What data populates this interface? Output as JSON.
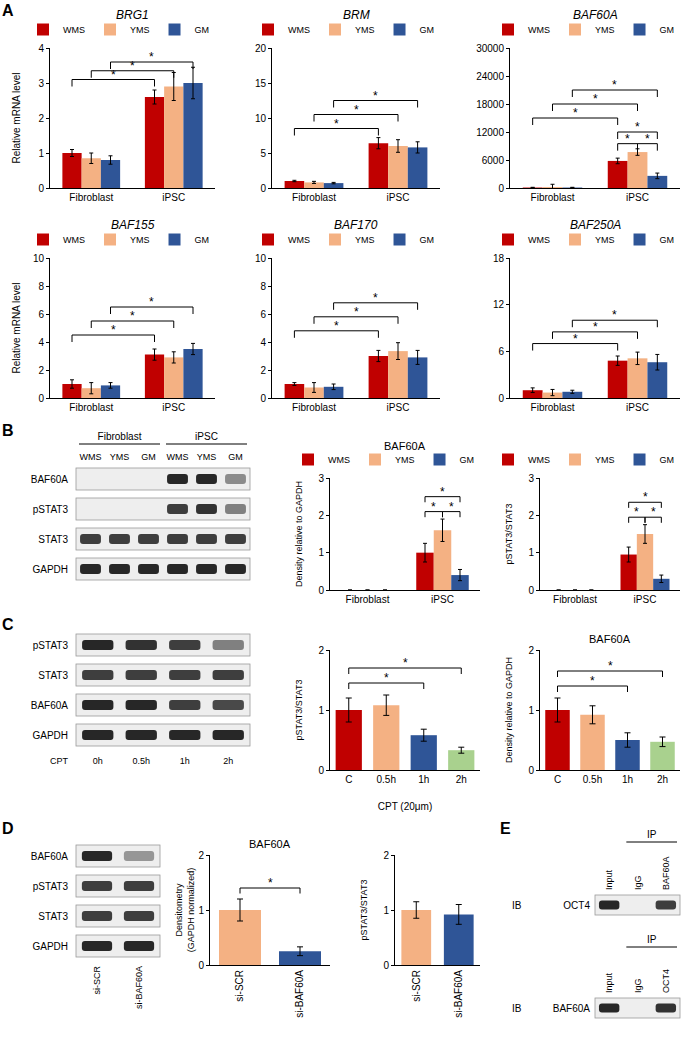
{
  "chart_data": [
    {
      "type": "bar",
      "title": "BRG1",
      "y_label": "Relative mRNA level",
      "categories": [
        "Fibroblast",
        "iPSC"
      ],
      "series": [
        {
          "name": "WMS",
          "color": "#c00000",
          "values": [
            1.0,
            2.6
          ],
          "errors": [
            0.1,
            0.2
          ]
        },
        {
          "name": "YMS",
          "color": "#f4b183",
          "values": [
            0.85,
            2.9
          ],
          "errors": [
            0.15,
            0.4
          ]
        },
        {
          "name": "GM",
          "color": "#2f5597",
          "values": [
            0.8,
            3.0
          ],
          "errors": [
            0.12,
            0.45
          ]
        }
      ],
      "ylim": [
        0,
        4
      ],
      "yticks": [
        0,
        1,
        2,
        3,
        4
      ],
      "legend": "top",
      "significance": [
        {
          "from": [
            "Fibroblast",
            "WMS"
          ],
          "to": [
            "iPSC",
            "WMS"
          ],
          "y": 3.1,
          "label": "*"
        },
        {
          "from": [
            "Fibroblast",
            "YMS"
          ],
          "to": [
            "iPSC",
            "YMS"
          ],
          "y": 3.35,
          "label": "*"
        },
        {
          "from": [
            "Fibroblast",
            "GM"
          ],
          "to": [
            "iPSC",
            "GM"
          ],
          "y": 3.6,
          "label": "*"
        }
      ]
    },
    {
      "type": "bar",
      "title": "BRM",
      "categories": [
        "Fibroblast",
        "iPSC"
      ],
      "series": [
        {
          "name": "WMS",
          "color": "#c00000",
          "values": [
            1.0,
            6.4
          ],
          "errors": [
            0.1,
            0.8
          ]
        },
        {
          "name": "YMS",
          "color": "#f4b183",
          "values": [
            0.8,
            6.0
          ],
          "errors": [
            0.15,
            0.9
          ]
        },
        {
          "name": "GM",
          "color": "#2f5597",
          "values": [
            0.7,
            5.8
          ],
          "errors": [
            0.1,
            0.8
          ]
        }
      ],
      "ylim": [
        0,
        20
      ],
      "yticks": [
        0,
        5,
        10,
        15,
        20
      ],
      "legend": "top",
      "significance": [
        {
          "from": [
            "Fibroblast",
            "WMS"
          ],
          "to": [
            "iPSC",
            "WMS"
          ],
          "y": 8.5,
          "label": "*"
        },
        {
          "from": [
            "Fibroblast",
            "YMS"
          ],
          "to": [
            "iPSC",
            "YMS"
          ],
          "y": 10.5,
          "label": "*"
        },
        {
          "from": [
            "Fibroblast",
            "GM"
          ],
          "to": [
            "iPSC",
            "GM"
          ],
          "y": 12.5,
          "label": "*"
        }
      ]
    },
    {
      "type": "bar",
      "title": "BAF60A",
      "categories": [
        "Fibroblast",
        "iPSC"
      ],
      "series": [
        {
          "name": "WMS",
          "color": "#c00000",
          "values": [
            100,
            5800
          ],
          "errors": [
            50,
            600
          ]
        },
        {
          "name": "YMS",
          "color": "#f4b183",
          "values": [
            200,
            7700
          ],
          "errors": [
            600,
            700
          ]
        },
        {
          "name": "GM",
          "color": "#2f5597",
          "values": [
            100,
            2600
          ],
          "errors": [
            50,
            600
          ]
        }
      ],
      "ylim": [
        0,
        30000
      ],
      "yticks": [
        0,
        6000,
        12000,
        18000,
        24000,
        30000
      ],
      "legend": "top",
      "significance": [
        {
          "from": [
            "Fibroblast",
            "WMS"
          ],
          "to": [
            "iPSC",
            "WMS"
          ],
          "y": 15000,
          "label": "*"
        },
        {
          "from": [
            "Fibroblast",
            "YMS"
          ],
          "to": [
            "iPSC",
            "YMS"
          ],
          "y": 18000,
          "label": "*"
        },
        {
          "from": [
            "Fibroblast",
            "GM"
          ],
          "to": [
            "iPSC",
            "GM"
          ],
          "y": 21000,
          "label": "*"
        },
        {
          "from": [
            "iPSC",
            "WMS"
          ],
          "to": [
            "iPSC",
            "YMS"
          ],
          "y": 9500,
          "label": "*"
        },
        {
          "from": [
            "iPSC",
            "YMS"
          ],
          "to": [
            "iPSC",
            "GM"
          ],
          "y": 9500,
          "label": "*"
        },
        {
          "from": [
            "iPSC",
            "WMS"
          ],
          "to": [
            "iPSC",
            "GM"
          ],
          "y": 12000,
          "label": "*"
        }
      ]
    },
    {
      "type": "bar",
      "title": "BAF155",
      "y_label": "Relative mRNA level",
      "categories": [
        "Fibroblast",
        "iPSC"
      ],
      "series": [
        {
          "name": "WMS",
          "color": "#c00000",
          "values": [
            1.0,
            3.1
          ],
          "errors": [
            0.3,
            0.4
          ]
        },
        {
          "name": "YMS",
          "color": "#f4b183",
          "values": [
            0.7,
            2.9
          ],
          "errors": [
            0.4,
            0.4
          ]
        },
        {
          "name": "GM",
          "color": "#2f5597",
          "values": [
            0.9,
            3.5
          ],
          "errors": [
            0.2,
            0.4
          ]
        }
      ],
      "ylim": [
        0,
        10
      ],
      "yticks": [
        0,
        2,
        4,
        6,
        8,
        10
      ],
      "legend": "top",
      "significance": [
        {
          "from": [
            "Fibroblast",
            "WMS"
          ],
          "to": [
            "iPSC",
            "WMS"
          ],
          "y": 4.5,
          "label": "*"
        },
        {
          "from": [
            "Fibroblast",
            "YMS"
          ],
          "to": [
            "iPSC",
            "YMS"
          ],
          "y": 5.5,
          "label": "*"
        },
        {
          "from": [
            "Fibroblast",
            "GM"
          ],
          "to": [
            "iPSC",
            "GM"
          ],
          "y": 6.5,
          "label": "*"
        }
      ]
    },
    {
      "type": "bar",
      "title": "BAF170",
      "categories": [
        "Fibroblast",
        "iPSC"
      ],
      "series": [
        {
          "name": "WMS",
          "color": "#c00000",
          "values": [
            1.0,
            3.0
          ],
          "errors": [
            0.1,
            0.4
          ]
        },
        {
          "name": "YMS",
          "color": "#f4b183",
          "values": [
            0.75,
            3.35
          ],
          "errors": [
            0.35,
            0.6
          ]
        },
        {
          "name": "GM",
          "color": "#2f5597",
          "values": [
            0.8,
            2.9
          ],
          "errors": [
            0.2,
            0.5
          ]
        }
      ],
      "ylim": [
        0,
        10
      ],
      "yticks": [
        0,
        2,
        4,
        6,
        8,
        10
      ],
      "legend": "top",
      "significance": [
        {
          "from": [
            "Fibroblast",
            "WMS"
          ],
          "to": [
            "iPSC",
            "WMS"
          ],
          "y": 4.8,
          "label": "*"
        },
        {
          "from": [
            "Fibroblast",
            "YMS"
          ],
          "to": [
            "iPSC",
            "YMS"
          ],
          "y": 5.8,
          "label": "*"
        },
        {
          "from": [
            "Fibroblast",
            "GM"
          ],
          "to": [
            "iPSC",
            "GM"
          ],
          "y": 6.8,
          "label": "*"
        }
      ]
    },
    {
      "type": "bar",
      "title": "BAF250A",
      "categories": [
        "Fibroblast",
        "iPSC"
      ],
      "series": [
        {
          "name": "WMS",
          "color": "#c00000",
          "values": [
            1.0,
            4.8
          ],
          "errors": [
            0.3,
            0.6
          ]
        },
        {
          "name": "YMS",
          "color": "#f4b183",
          "values": [
            0.7,
            5.1
          ],
          "errors": [
            0.4,
            0.8
          ]
        },
        {
          "name": "GM",
          "color": "#2f5597",
          "values": [
            0.8,
            4.6
          ],
          "errors": [
            0.2,
            1.0
          ]
        }
      ],
      "ylim": [
        0,
        18
      ],
      "yticks": [
        0,
        6,
        12,
        18
      ],
      "legend": "top",
      "significance": [
        {
          "from": [
            "Fibroblast",
            "WMS"
          ],
          "to": [
            "iPSC",
            "WMS"
          ],
          "y": 7,
          "label": "*"
        },
        {
          "from": [
            "Fibroblast",
            "YMS"
          ],
          "to": [
            "iPSC",
            "YMS"
          ],
          "y": 8.5,
          "label": "*"
        },
        {
          "from": [
            "Fibroblast",
            "GM"
          ],
          "to": [
            "iPSC",
            "GM"
          ],
          "y": 10,
          "label": "*"
        }
      ]
    },
    {
      "type": "bar",
      "title": "BAF60A",
      "y_label": "Density relative to GAPDH",
      "categories": [
        "Fibroblast",
        "iPSC"
      ],
      "series": [
        {
          "name": "WMS",
          "color": "#c00000",
          "values": [
            0,
            1.0
          ],
          "errors": [
            0,
            0.25
          ]
        },
        {
          "name": "YMS",
          "color": "#f4b183",
          "values": [
            0,
            1.6
          ],
          "errors": [
            0,
            0.3
          ]
        },
        {
          "name": "GM",
          "color": "#2f5597",
          "values": [
            0,
            0.4
          ],
          "errors": [
            0,
            0.15
          ]
        }
      ],
      "ylim": [
        0,
        3
      ],
      "yticks": [
        0,
        1,
        2,
        3
      ],
      "legend": "top",
      "significance": [
        {
          "from": [
            "iPSC",
            "WMS"
          ],
          "to": [
            "iPSC",
            "YMS"
          ],
          "y": 2.1,
          "label": "*"
        },
        {
          "from": [
            "iPSC",
            "YMS"
          ],
          "to": [
            "iPSC",
            "GM"
          ],
          "y": 2.1,
          "label": "*"
        },
        {
          "from": [
            "iPSC",
            "WMS"
          ],
          "to": [
            "iPSC",
            "GM"
          ],
          "y": 2.5,
          "label": "*"
        }
      ]
    },
    {
      "type": "bar",
      "y_label": "pSTAT3/STAT3",
      "categories": [
        "Fibroblast",
        "iPSC"
      ],
      "series": [
        {
          "name": "WMS",
          "color": "#c00000",
          "values": [
            0,
            0.95
          ],
          "errors": [
            0,
            0.2
          ]
        },
        {
          "name": "YMS",
          "color": "#f4b183",
          "values": [
            0,
            1.5
          ],
          "errors": [
            0,
            0.25
          ]
        },
        {
          "name": "GM",
          "color": "#2f5597",
          "values": [
            0,
            0.3
          ],
          "errors": [
            0,
            0.1
          ]
        }
      ],
      "ylim": [
        0,
        3
      ],
      "yticks": [
        0,
        1,
        2,
        3
      ],
      "legend": "top",
      "significance": [
        {
          "from": [
            "iPSC",
            "WMS"
          ],
          "to": [
            "iPSC",
            "YMS"
          ],
          "y": 1.95,
          "label": "*"
        },
        {
          "from": [
            "iPSC",
            "YMS"
          ],
          "to": [
            "iPSC",
            "GM"
          ],
          "y": 1.95,
          "label": "*"
        },
        {
          "from": [
            "iPSC",
            "WMS"
          ],
          "to": [
            "iPSC",
            "GM"
          ],
          "y": 2.35,
          "label": "*"
        }
      ]
    },
    {
      "type": "bar",
      "y_label": "pSTAT3/STAT3",
      "x_label": "CPT (20μm)",
      "categories": [
        "C",
        "0.5h",
        "1h",
        "2h"
      ],
      "values": [
        1.0,
        1.08,
        0.58,
        0.33
      ],
      "errors": [
        0.2,
        0.17,
        0.1,
        0.05
      ],
      "colors": [
        "#c00000",
        "#f4b183",
        "#2f5597",
        "#a9d18e"
      ],
      "ylim": [
        0,
        2
      ],
      "yticks": [
        0,
        1,
        2
      ],
      "significance": [
        {
          "from": "C",
          "to": "1h",
          "y": 1.45,
          "label": "*"
        },
        {
          "from": "C",
          "to": "2h",
          "y": 1.7,
          "label": "*"
        }
      ]
    },
    {
      "type": "bar",
      "title": "BAF60A",
      "y_label": "Density relative to GAPDH",
      "categories": [
        "C",
        "0.5h",
        "1h",
        "2h"
      ],
      "values": [
        1.0,
        0.92,
        0.5,
        0.47
      ],
      "errors": [
        0.2,
        0.15,
        0.12,
        0.08
      ],
      "colors": [
        "#c00000",
        "#f4b183",
        "#2f5597",
        "#a9d18e"
      ],
      "ylim": [
        0,
        2
      ],
      "yticks": [
        0,
        1,
        2
      ],
      "significance": [
        {
          "from": "C",
          "to": "1h",
          "y": 1.4,
          "label": "*"
        },
        {
          "from": "C",
          "to": "2h",
          "y": 1.65,
          "label": "*"
        }
      ]
    },
    {
      "type": "bar",
      "title": "BAF60A",
      "y_label": "Densitometry\n(GAPDH normalized)",
      "categories": [
        "si-SCR",
        "si-BAF60A"
      ],
      "values": [
        1.0,
        0.25
      ],
      "errors": [
        0.2,
        0.08
      ],
      "colors": [
        "#f4b183",
        "#2f5597"
      ],
      "ylim": [
        0,
        2
      ],
      "yticks": [
        0,
        1,
        2
      ],
      "significance": [
        {
          "from": "si-SCR",
          "to": "si-BAF60A",
          "y": 1.4,
          "label": "*"
        }
      ]
    },
    {
      "type": "bar",
      "y_label": "pSTAT3/STAT3",
      "categories": [
        "si-SCR",
        "si-BAF60A"
      ],
      "values": [
        1.0,
        0.92
      ],
      "errors": [
        0.15,
        0.18
      ],
      "colors": [
        "#f4b183",
        "#2f5597"
      ],
      "ylim": [
        0,
        2
      ],
      "yticks": [
        0,
        1,
        2
      ]
    }
  ],
  "panel_labels": [
    "A",
    "B",
    "C",
    "D",
    "E"
  ],
  "blots": [
    {
      "header": [
        {
          "text": "Fibroblast",
          "start": 0,
          "span": 3
        },
        {
          "text": "iPSC",
          "start": 3,
          "span": 3
        }
      ],
      "lanes": [
        "WMS",
        "YMS",
        "GM",
        "WMS",
        "YMS",
        "GM"
      ],
      "rows": [
        {
          "label": "BAF60A",
          "bands": [
            0,
            0,
            0,
            0.9,
            0.9,
            0.45
          ]
        },
        {
          "label": "pSTAT3",
          "bands": [
            0,
            0,
            0,
            0.8,
            0.85,
            0.5
          ]
        },
        {
          "label": "STAT3",
          "bands": [
            0.8,
            0.8,
            0.8,
            0.8,
            0.8,
            0.8
          ]
        },
        {
          "label": "GAPDH",
          "bands": [
            0.9,
            0.9,
            0.9,
            0.9,
            0.9,
            0.9
          ]
        }
      ]
    },
    {
      "lane_title": "CPT",
      "lanes": [
        "0h",
        "0.5h",
        "1h",
        "2h"
      ],
      "rows": [
        {
          "label": "pSTAT3",
          "bands": [
            0.9,
            0.85,
            0.8,
            0.5
          ]
        },
        {
          "label": "STAT3",
          "bands": [
            0.8,
            0.8,
            0.8,
            0.8
          ]
        },
        {
          "label": "BAF60A",
          "bands": [
            0.9,
            0.9,
            0.8,
            0.75
          ]
        },
        {
          "label": "GAPDH",
          "bands": [
            0.9,
            0.9,
            0.9,
            0.9
          ]
        }
      ]
    },
    {
      "lanes": [
        "si-SCR",
        "si-BAF60A"
      ],
      "rows": [
        {
          "label": "BAF60A",
          "bands": [
            0.9,
            0.4
          ]
        },
        {
          "label": "pSTAT3",
          "bands": [
            0.8,
            0.8
          ]
        },
        {
          "label": "STAT3",
          "bands": [
            0.8,
            0.8
          ]
        },
        {
          "label": "GAPDH",
          "bands": [
            0.9,
            0.9
          ]
        }
      ]
    },
    {
      "header": [
        {
          "text": "IP",
          "start": 1,
          "span": 2
        }
      ],
      "lanes": [
        "Input",
        "IgG",
        "BAF60A"
      ],
      "row_title": "IB",
      "rows": [
        {
          "label": "OCT4",
          "bands": [
            0.9,
            0,
            0.8
          ]
        }
      ]
    },
    {
      "header": [
        {
          "text": "IP",
          "start": 1,
          "span": 2
        }
      ],
      "lanes": [
        "Input",
        "IgG",
        "OCT4"
      ],
      "row_title": "IB",
      "rows": [
        {
          "label": "BAF60A",
          "bands": [
            0.9,
            0,
            0.85
          ]
        }
      ]
    }
  ]
}
